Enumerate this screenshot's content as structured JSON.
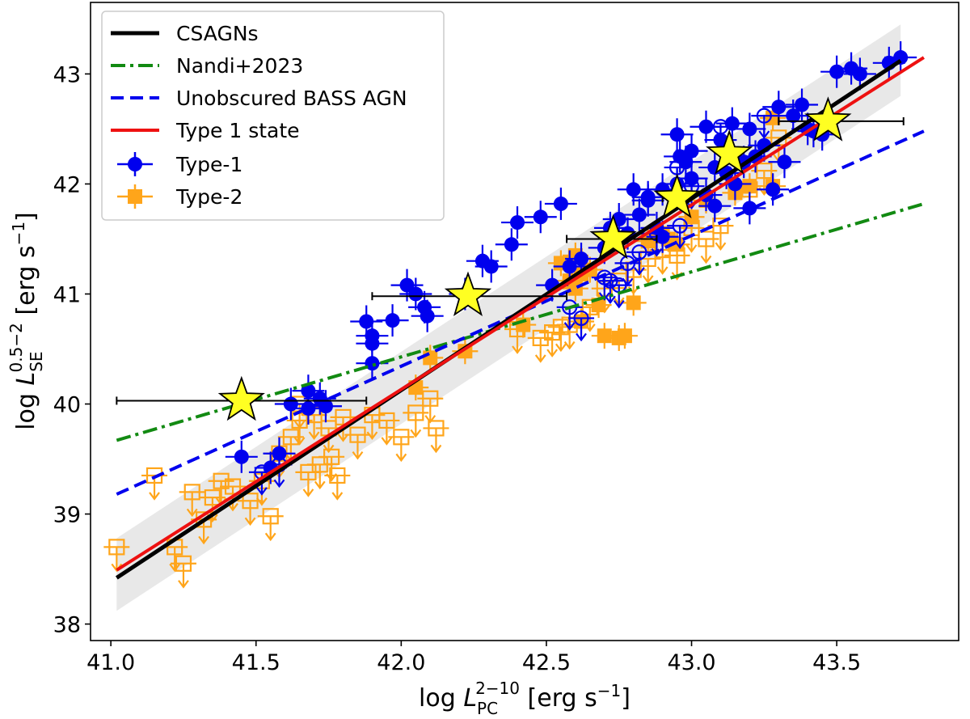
{
  "chart_data": {
    "type": "scatter",
    "xlabel": {
      "main": "log ",
      "var": "L",
      "sub": "PC",
      "sup": "2−10",
      "unit": " [erg s",
      "unit_sup": "−1",
      "unit_end": "]"
    },
    "ylabel": {
      "main": "log ",
      "var": "L",
      "sub": "SE",
      "sup": "0.5−2",
      "unit": " [erg s",
      "unit_sup": "−1",
      "unit_end": "]"
    },
    "xlim": [
      40.93,
      43.92
    ],
    "ylim": [
      37.85,
      43.65
    ],
    "xticks": [
      "41.0",
      "41.5",
      "42.0",
      "42.5",
      "43.0",
      "43.5"
    ],
    "yticks": [
      "38",
      "39",
      "40",
      "41",
      "42",
      "43"
    ],
    "colors": {
      "black": "#000000",
      "green": "#128a12",
      "blue": "#0000ee",
      "red": "#ee1111",
      "orange": "#ffa51a",
      "yellow": "#ffff22",
      "band": "#e6e6e6"
    },
    "band": {
      "x": [
        41.02,
        43.72
      ],
      "lower": [
        38.12,
        42.8
      ],
      "upper": [
        38.78,
        43.45
      ]
    },
    "lines": [
      {
        "name": "CSAGNs",
        "style": "solid",
        "color": "#000000",
        "x": [
          41.02,
          43.72
        ],
        "y": [
          38.42,
          43.12
        ]
      },
      {
        "name": "Nandi+2023",
        "style": "dashdot",
        "color": "#128a12",
        "x": [
          41.02,
          43.8
        ],
        "y": [
          39.67,
          41.82
        ]
      },
      {
        "name": "Unobscured BASS AGN",
        "style": "dashed",
        "color": "#0000ee",
        "x": [
          41.02,
          43.8
        ],
        "y": [
          39.18,
          42.48
        ]
      },
      {
        "name": "Type 1 state",
        "style": "solid",
        "color": "#ee1111",
        "x": [
          41.02,
          43.8
        ],
        "y": [
          38.49,
          43.15
        ]
      }
    ],
    "legend": {
      "position": "top-left",
      "entries": [
        "CSAGNs",
        "Nandi+2023",
        "Unobscured BASS AGN",
        "Type 1 state",
        "Type-1",
        "Type-2"
      ]
    },
    "type1": [
      [
        41.45,
        39.52
      ],
      [
        41.55,
        39.42
      ],
      [
        41.58,
        39.55
      ],
      [
        41.62,
        40.0
      ],
      [
        41.68,
        40.12
      ],
      [
        41.72,
        40.05
      ],
      [
        41.74,
        39.98
      ],
      [
        41.68,
        39.96
      ],
      [
        41.88,
        40.75
      ],
      [
        41.9,
        40.62
      ],
      [
        41.9,
        40.55
      ],
      [
        41.9,
        40.37
      ],
      [
        41.97,
        40.76
      ],
      [
        42.02,
        41.08
      ],
      [
        42.05,
        41.0
      ],
      [
        42.08,
        40.88
      ],
      [
        42.09,
        40.8
      ],
      [
        42.22,
        41.0
      ],
      [
        42.28,
        41.3
      ],
      [
        42.31,
        41.25
      ],
      [
        42.38,
        41.45
      ],
      [
        42.4,
        41.65
      ],
      [
        42.48,
        41.7
      ],
      [
        42.55,
        41.82
      ],
      [
        42.52,
        41.08
      ],
      [
        42.58,
        41.25
      ],
      [
        42.62,
        41.32
      ],
      [
        42.7,
        41.42
      ],
      [
        42.78,
        41.55
      ],
      [
        42.82,
        41.72
      ],
      [
        42.85,
        41.88
      ],
      [
        42.8,
        41.95
      ],
      [
        42.85,
        41.85
      ],
      [
        42.9,
        41.95
      ],
      [
        42.95,
        42.0
      ],
      [
        43.0,
        42.05
      ],
      [
        43.05,
        41.9
      ],
      [
        43.08,
        41.8
      ],
      [
        42.88,
        41.6
      ],
      [
        42.9,
        41.52
      ],
      [
        42.96,
        42.25
      ],
      [
        43.0,
        42.3
      ],
      [
        43.08,
        42.15
      ],
      [
        43.1,
        42.4
      ],
      [
        43.14,
        42.55
      ],
      [
        43.2,
        42.5
      ],
      [
        43.25,
        42.35
      ],
      [
        43.3,
        42.7
      ],
      [
        43.35,
        42.62
      ],
      [
        43.4,
        42.5
      ],
      [
        43.45,
        42.45
      ],
      [
        43.18,
        42.2
      ],
      [
        43.22,
        42.25
      ],
      [
        43.12,
        42.1
      ],
      [
        43.15,
        42.0
      ],
      [
        43.2,
        41.78
      ],
      [
        43.28,
        41.95
      ],
      [
        43.32,
        42.2
      ],
      [
        43.38,
        42.72
      ],
      [
        43.42,
        42.48
      ],
      [
        43.5,
        43.02
      ],
      [
        43.55,
        43.05
      ],
      [
        43.58,
        43.0
      ],
      [
        43.68,
        43.1
      ],
      [
        43.72,
        43.15
      ],
      [
        42.98,
        42.2
      ],
      [
        42.95,
        42.45
      ],
      [
        43.05,
        42.52
      ],
      [
        42.75,
        41.68
      ],
      [
        42.72,
        41.6
      ]
    ],
    "type1_open": [
      [
        41.52,
        39.38
      ],
      [
        41.58,
        39.45
      ],
      [
        42.72,
        41.12
      ],
      [
        42.78,
        41.28
      ],
      [
        42.82,
        41.38
      ],
      [
        42.58,
        40.88
      ],
      [
        42.62,
        40.78
      ],
      [
        42.88,
        41.55
      ],
      [
        42.96,
        41.62
      ],
      [
        43.0,
        41.98
      ],
      [
        42.95,
        42.15
      ],
      [
        43.1,
        42.52
      ],
      [
        43.25,
        42.62
      ],
      [
        42.7,
        41.15
      ],
      [
        42.75,
        41.08
      ]
    ],
    "type2": [
      [
        42.1,
        40.42
      ],
      [
        42.05,
        40.15
      ],
      [
        42.22,
        40.48
      ],
      [
        42.42,
        40.72
      ],
      [
        42.58,
        41.12
      ],
      [
        42.62,
        41.18
      ],
      [
        42.6,
        41.35
      ],
      [
        42.65,
        41.22
      ],
      [
        42.7,
        40.62
      ],
      [
        42.75,
        40.6
      ],
      [
        42.77,
        40.62
      ],
      [
        42.8,
        40.92
      ],
      [
        42.85,
        41.48
      ],
      [
        42.9,
        41.55
      ],
      [
        42.95,
        41.45
      ],
      [
        43.0,
        41.7
      ],
      [
        43.05,
        41.85
      ],
      [
        43.15,
        41.92
      ],
      [
        43.2,
        41.98
      ],
      [
        43.28,
        41.98
      ],
      [
        43.28,
        42.6
      ],
      [
        42.6,
        41.05
      ],
      [
        42.55,
        41.28
      ],
      [
        42.62,
        40.75
      ],
      [
        42.68,
        40.9
      ],
      [
        42.92,
        41.5
      ]
    ],
    "type2_upper": [
      [
        41.02,
        38.7
      ],
      [
        41.15,
        39.35
      ],
      [
        41.22,
        38.7
      ],
      [
        41.25,
        38.55
      ],
      [
        41.28,
        39.2
      ],
      [
        41.32,
        38.95
      ],
      [
        41.35,
        39.15
      ],
      [
        41.38,
        39.3
      ],
      [
        41.42,
        39.25
      ],
      [
        41.48,
        39.12
      ],
      [
        41.52,
        39.3
      ],
      [
        41.55,
        38.98
      ],
      [
        41.58,
        39.55
      ],
      [
        41.62,
        39.7
      ],
      [
        41.65,
        39.85
      ],
      [
        41.68,
        39.38
      ],
      [
        41.72,
        39.45
      ],
      [
        41.76,
        39.52
      ],
      [
        41.78,
        39.35
      ],
      [
        41.65,
        40.0
      ],
      [
        41.7,
        39.9
      ],
      [
        41.75,
        39.78
      ],
      [
        41.8,
        39.88
      ],
      [
        41.85,
        39.72
      ],
      [
        41.9,
        39.9
      ],
      [
        41.95,
        39.85
      ],
      [
        42.0,
        39.7
      ],
      [
        42.05,
        39.92
      ],
      [
        42.1,
        40.05
      ],
      [
        42.12,
        39.78
      ],
      [
        42.4,
        40.68
      ],
      [
        42.48,
        40.6
      ],
      [
        42.52,
        40.65
      ],
      [
        42.55,
        40.7
      ],
      [
        42.58,
        40.72
      ],
      [
        42.65,
        40.88
      ],
      [
        42.7,
        41.05
      ],
      [
        42.75,
        41.12
      ],
      [
        42.8,
        41.22
      ],
      [
        42.85,
        41.32
      ],
      [
        42.9,
        41.4
      ],
      [
        42.95,
        41.35
      ],
      [
        43.0,
        41.6
      ],
      [
        43.05,
        41.5
      ],
      [
        43.1,
        41.62
      ],
      [
        43.2,
        41.95
      ],
      [
        43.25,
        42.12
      ],
      [
        43.3,
        42.42
      ]
    ],
    "stars": [
      {
        "x": 41.45,
        "y": 40.03,
        "xerr": [
          41.02,
          41.88
        ]
      },
      {
        "x": 42.23,
        "y": 40.98,
        "xerr": [
          41.9,
          42.57
        ]
      },
      {
        "x": 42.73,
        "y": 41.5,
        "xerr": [
          42.57,
          42.88
        ]
      },
      {
        "x": 42.95,
        "y": 41.87,
        "xerr": [
          42.9,
          42.98
        ]
      },
      {
        "x": 43.13,
        "y": 42.27,
        "xerr": [
          43.1,
          43.15
        ]
      },
      {
        "x": 43.47,
        "y": 42.57,
        "xerr": [
          43.3,
          43.73
        ]
      }
    ]
  }
}
